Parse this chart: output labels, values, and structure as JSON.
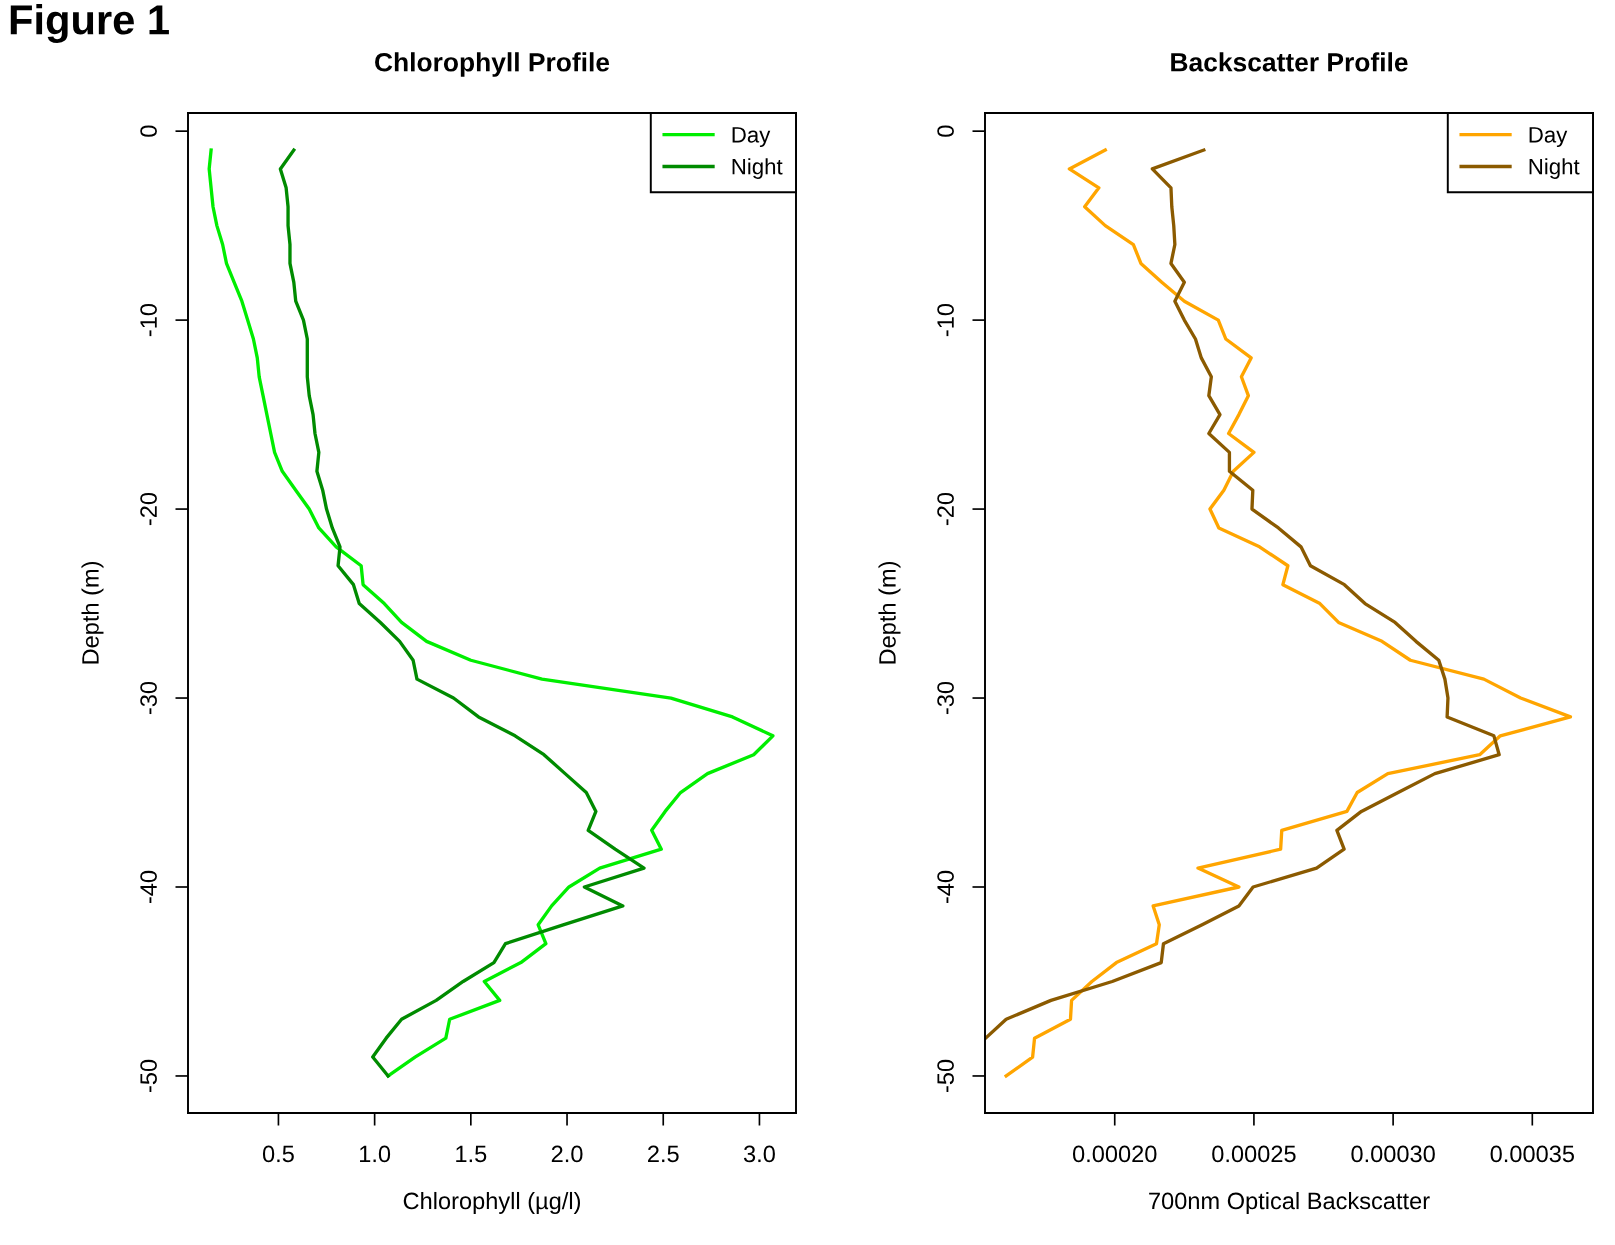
{
  "chart_data": [
    {
      "type": "line",
      "title": "Chlorophyll Profile",
      "xlabel": "Chlorophyll (µg/l)",
      "ylabel": "Depth (m)",
      "annotations": [
        "Figure 1"
      ],
      "xlim": [
        0.03,
        3.19
      ],
      "xticks": [
        {
          "value": 0.5,
          "label": "0.5"
        },
        {
          "value": 1,
          "label": "1.0"
        },
        {
          "value": 1.5,
          "label": "1.5"
        },
        {
          "value": 2,
          "label": "2.0"
        },
        {
          "value": 2.5,
          "label": "2.5"
        },
        {
          "value": 3,
          "label": "3.0"
        }
      ],
      "ylim": [
        -51.96,
        0.96
      ],
      "yticks": [
        0,
        -10,
        -20,
        -30,
        -40,
        -50
      ],
      "legend": "top right",
      "grid": false,
      "marker": "none",
      "line_style": "solid",
      "series": [
        {
          "name": "Day",
          "color": "#00ee00",
          "x": [
            0.15,
            0.14,
            0.15,
            0.16,
            0.18,
            0.21,
            0.23,
            0.27,
            0.31,
            0.34,
            0.37,
            0.39,
            0.4,
            0.42,
            0.44,
            0.46,
            0.48,
            0.52,
            0.59,
            0.66,
            0.71,
            0.8,
            0.93,
            0.94,
            1.05,
            1.14,
            1.27,
            1.5,
            1.87,
            2.54,
            2.86,
            3.07,
            2.97,
            2.73,
            2.59,
            2.51,
            2.44,
            2.49,
            2.17,
            2.01,
            1.92,
            1.85,
            1.89,
            1.76,
            1.57,
            1.65,
            1.39,
            1.37,
            1.21,
            1.07
          ],
          "values": [
            -1,
            -2,
            -3,
            -4,
            -5,
            -6,
            -7,
            -8,
            -9,
            -10,
            -11,
            -12,
            -13,
            -14,
            -15,
            -16,
            -17,
            -18,
            -19,
            -20,
            -21,
            -22,
            -23,
            -24,
            -25,
            -26,
            -27,
            -28,
            -29,
            -30,
            -31,
            -32,
            -33,
            -34,
            -35,
            -36,
            -37,
            -38,
            -39,
            -40,
            -41,
            -42,
            -43,
            -44,
            -45,
            -46,
            -47,
            -48,
            -49,
            -50
          ]
        },
        {
          "name": "Night",
          "color": "#008b00",
          "x": [
            0.58,
            0.51,
            0.54,
            0.55,
            0.55,
            0.56,
            0.56,
            0.58,
            0.59,
            0.63,
            0.65,
            0.65,
            0.65,
            0.66,
            0.68,
            0.69,
            0.71,
            0.7,
            0.73,
            0.75,
            0.78,
            0.82,
            0.81,
            0.89,
            0.92,
            1.03,
            1.13,
            1.2,
            1.22,
            1.41,
            1.54,
            1.73,
            1.88,
            1.99,
            2.1,
            2.15,
            2.11,
            2.25,
            2.4,
            2.09,
            2.29,
            1.98,
            1.68,
            1.62,
            1.46,
            1.32,
            1.14,
            1.06,
            0.99,
            1.07
          ],
          "values": [
            -1,
            -2,
            -3,
            -4,
            -5,
            -6,
            -7,
            -8,
            -9,
            -10,
            -11,
            -12,
            -13,
            -14,
            -15,
            -16,
            -17,
            -18,
            -19,
            -20,
            -21,
            -22,
            -23,
            -24,
            -25,
            -26,
            -27,
            -28,
            -29,
            -30,
            -31,
            -32,
            -33,
            -34,
            -35,
            -36,
            -37,
            -38,
            -39,
            -40,
            -41,
            -42,
            -43,
            -44,
            -45,
            -46,
            -47,
            -48,
            -49,
            -50
          ]
        }
      ]
    },
    {
      "type": "line",
      "title": "Backscatter Profile",
      "xlabel": "700nm Optical Backscatter",
      "ylabel": "Depth (m)",
      "xlim": [
        0.0001534,
        0.0003718
      ],
      "xticks": [
        {
          "value": 0.0002,
          "label": "0.00020"
        },
        {
          "value": 0.00025,
          "label": "0.00025"
        },
        {
          "value": 0.0003,
          "label": "0.00030"
        },
        {
          "value": 0.00035,
          "label": "0.00035"
        }
      ],
      "ylim": [
        -51.96,
        0.96
      ],
      "yticks": [
        0,
        -10,
        -20,
        -30,
        -40,
        -50
      ],
      "legend": "top right",
      "grid": false,
      "marker": "none",
      "line_style": "solid",
      "series": [
        {
          "name": "Day",
          "color": "#ffa500",
          "x": [
            0.0001966,
            0.0001837,
            0.0001943,
            0.0001892,
            0.0001966,
            0.0002067,
            0.0002094,
            0.0002169,
            0.000225,
            0.0002372,
            0.0002399,
            0.000249,
            0.0002455,
            0.000248,
            0.0002446,
            0.0002409,
            0.00025,
            0.0002426,
            0.0002392,
            0.0002342,
            0.0002374,
            0.000252,
            0.0002622,
            0.0002604,
            0.0002737,
            0.0002804,
            0.000296,
            0.0003062,
            0.0003326,
            0.0003458,
            0.0003637,
            0.0003385,
            0.0003311,
            0.0002981,
            0.0002871,
            0.0002834,
            0.00026,
            0.0002596,
            0.0002299,
            0.0002446,
            0.0002138,
            0.000216,
            0.000215,
            0.0002006,
            0.0001918,
            0.0001845,
            0.0001841,
            0.0001712,
            0.0001705,
            0.000161
          ],
          "values": [
            -1,
            -2,
            -3,
            -4,
            -5,
            -6,
            -7,
            -8,
            -9,
            -10,
            -11,
            -12,
            -13,
            -14,
            -15,
            -16,
            -17,
            -18,
            -19,
            -20,
            -21,
            -22,
            -23,
            -24,
            -25,
            -26,
            -27,
            -28,
            -29,
            -30,
            -31,
            -32,
            -33,
            -34,
            -35,
            -36,
            -37,
            -38,
            -39,
            -40,
            -41,
            -42,
            -43,
            -44,
            -45,
            -46,
            -47,
            -48,
            -49,
            -50
          ]
        },
        {
          "name": "Night",
          "color": "#8b5a00",
          "x": [
            0.000232,
            0.0002135,
            0.0002202,
            0.0002205,
            0.0002212,
            0.0002216,
            0.0002202,
            0.000225,
            0.0002216,
            0.000225,
            0.000229,
            0.0002311,
            0.0002347,
            0.0002338,
            0.0002378,
            0.0002338,
            0.0002412,
            0.0002412,
            0.0002496,
            0.0002493,
            0.0002588,
            0.0002669,
            0.0002703,
            0.0002825,
            0.0002899,
            0.0003007,
            0.0003082,
            0.0003164,
            0.0003186,
            0.0003197,
            0.0003194,
            0.0003362,
            0.0003381,
            0.000315,
            0.0003018,
            0.0002886,
            0.0002798,
            0.0002824,
            0.0002725,
            0.0002497,
            0.0002446,
            0.0002314,
            0.0002175,
            0.0002167,
            0.0001991,
            0.0001771,
            0.000161,
            0.0001536
          ],
          "values": [
            -1,
            -2,
            -3,
            -4,
            -5,
            -6,
            -7,
            -8,
            -9,
            -10,
            -11,
            -12,
            -13,
            -14,
            -15,
            -16,
            -17,
            -18,
            -19,
            -20,
            -21,
            -22,
            -23,
            -24,
            -25,
            -26,
            -27,
            -28,
            -29,
            -30,
            -31,
            -32,
            -33,
            -34,
            -35,
            -36,
            -37,
            -38,
            -39,
            -40,
            -41,
            -42,
            -43,
            -44,
            -45,
            -46,
            -47,
            -48
          ]
        }
      ]
    }
  ]
}
